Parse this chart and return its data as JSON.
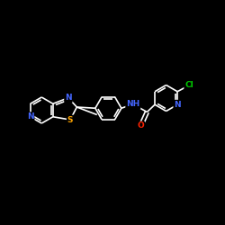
{
  "background_color": "#000000",
  "bond_color": "#ffffff",
  "bond_width": 1.2,
  "atom_colors": {
    "N": "#4466ff",
    "S": "#ffa500",
    "O": "#ff2200",
    "Cl": "#00cc00",
    "C": "#ffffff",
    "H": "#ffffff"
  },
  "font_size": 6.5,
  "figsize": [
    2.5,
    2.5
  ],
  "dpi": 100,
  "xlim": [
    0,
    10
  ],
  "ylim": [
    1,
    9
  ]
}
